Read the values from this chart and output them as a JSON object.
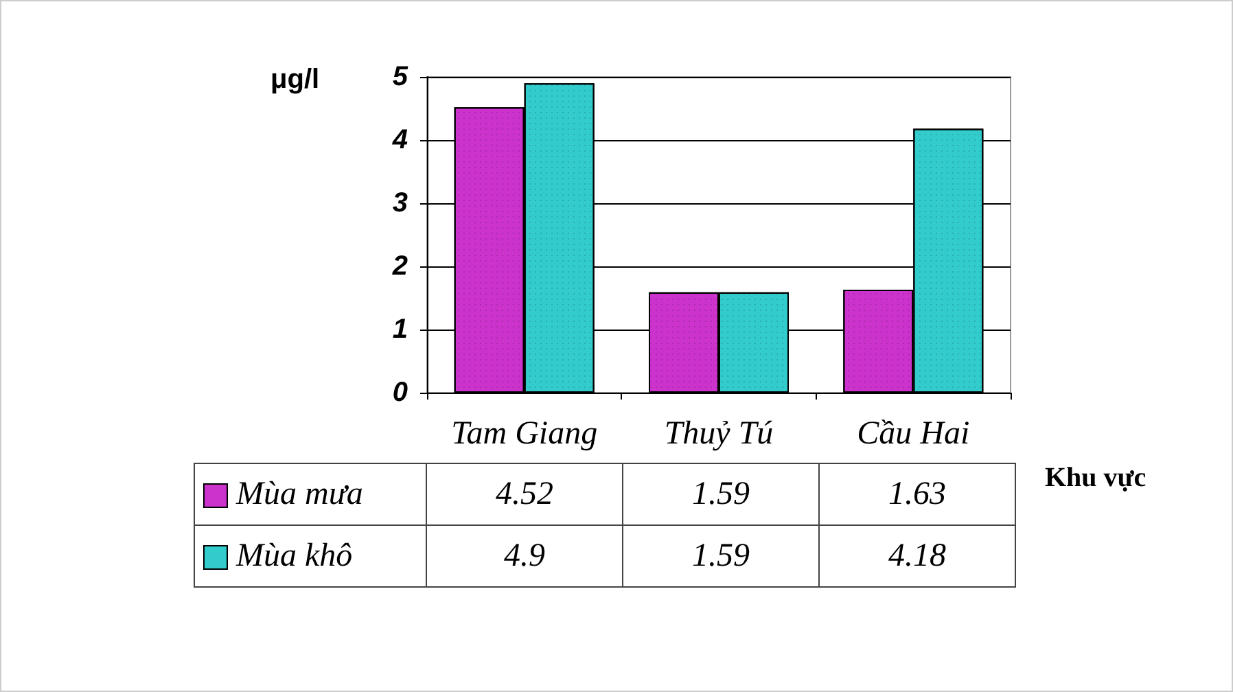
{
  "chart_data": {
    "type": "bar",
    "ylabel": "μg/l",
    "xlabel": "Khu vực",
    "categories": [
      "Tam Giang",
      "Thuỷ Tú",
      "Cầu Hai"
    ],
    "series": [
      {
        "name": "Mùa mưa",
        "color": "#cc33cc",
        "values": [
          4.52,
          1.59,
          1.63
        ]
      },
      {
        "name": "Mùa khô",
        "color": "#33cccc",
        "values": [
          4.9,
          1.59,
          4.18
        ]
      }
    ],
    "ylim": [
      0,
      5
    ],
    "yticks": [
      0,
      1,
      2,
      3,
      4,
      5
    ],
    "grid": "y",
    "legend": "bottom left",
    "data_labels": true
  }
}
